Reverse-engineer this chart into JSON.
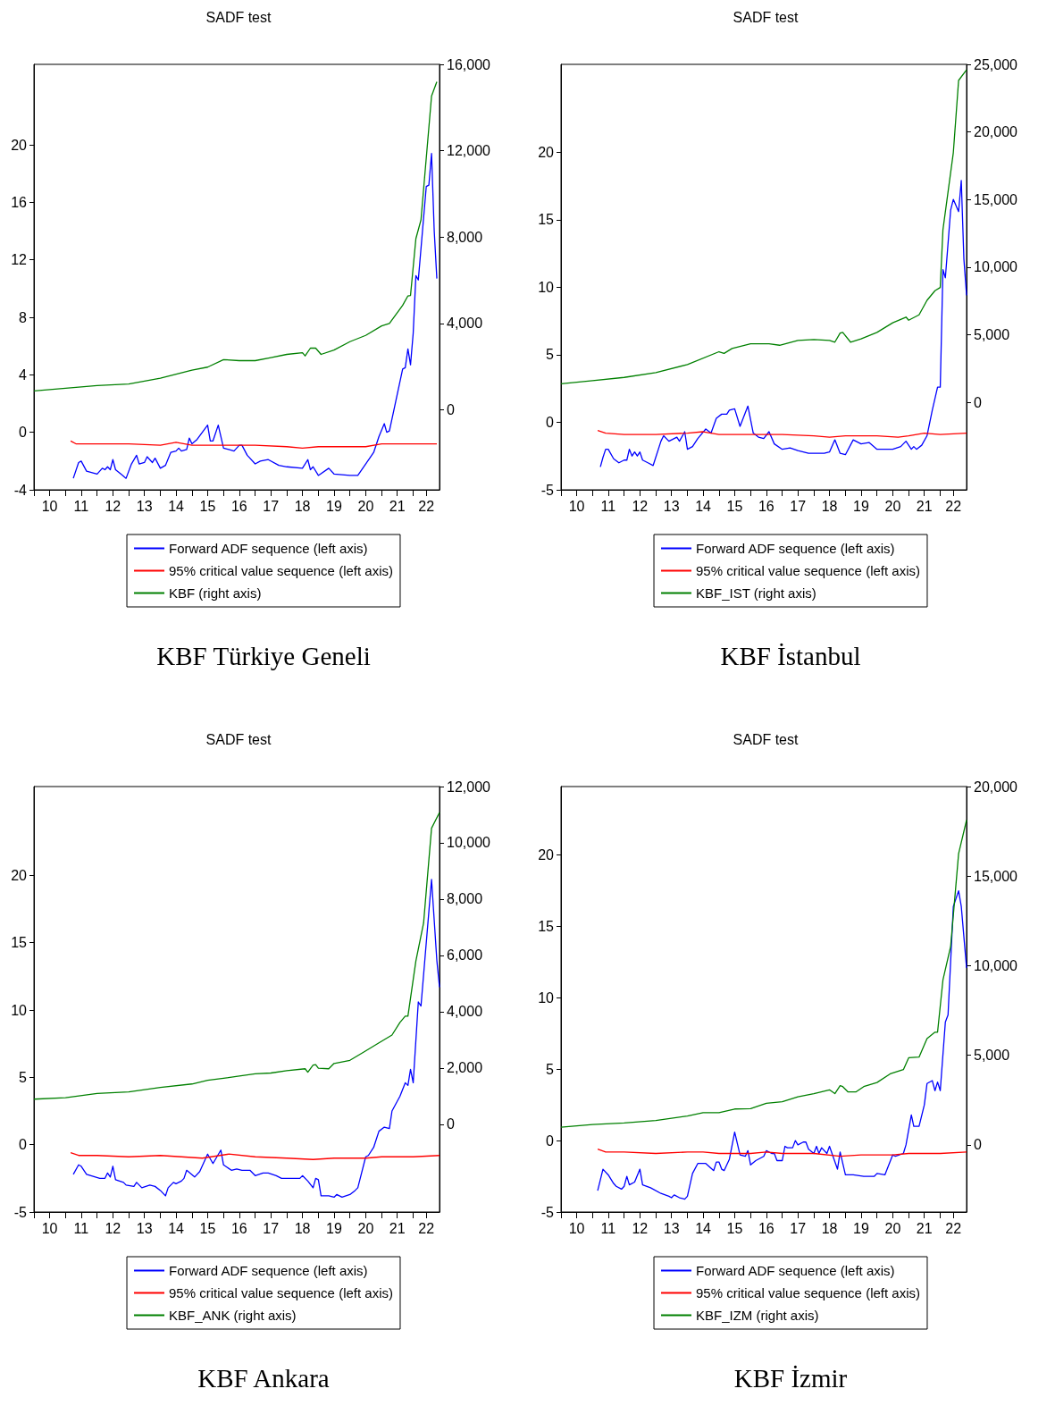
{
  "chart_data": [
    {
      "type": "line",
      "title": "SADF test",
      "annotations": [
        "KBF Türkiye Geneli"
      ],
      "legend": "bottom",
      "grid": false,
      "marker": "none",
      "line_style": "solid",
      "xlim": [
        "2010-01",
        "2022-11"
      ],
      "xticks": [
        {
          "value": "2010-01",
          "label": null
        },
        {
          "value": "2010-07",
          "label": "10"
        },
        {
          "value": "2011-01",
          "label": null
        },
        {
          "value": "2011-07",
          "label": "11"
        },
        {
          "value": "2012-01",
          "label": null
        },
        {
          "value": "2012-07",
          "label": "12"
        },
        {
          "value": "2013-01",
          "label": null
        },
        {
          "value": "2013-07",
          "label": "13"
        },
        {
          "value": "2014-01",
          "label": null
        },
        {
          "value": "2014-07",
          "label": "14"
        },
        {
          "value": "2015-01",
          "label": null
        },
        {
          "value": "2015-07",
          "label": "15"
        },
        {
          "value": "2016-01",
          "label": null
        },
        {
          "value": "2016-07",
          "label": "16"
        },
        {
          "value": "2017-01",
          "label": null
        },
        {
          "value": "2017-07",
          "label": "17"
        },
        {
          "value": "2018-01",
          "label": null
        },
        {
          "value": "2018-07",
          "label": "18"
        },
        {
          "value": "2019-01",
          "label": null
        },
        {
          "value": "2019-07",
          "label": "19"
        },
        {
          "value": "2020-01",
          "label": null
        },
        {
          "value": "2020-07",
          "label": "20"
        },
        {
          "value": "2021-01",
          "label": null
        },
        {
          "value": "2021-07",
          "label": "21"
        },
        {
          "value": "2022-01",
          "label": null
        },
        {
          "value": "2022-06",
          "label": "22"
        }
      ],
      "ylim": [
        -4,
        25.6
      ],
      "yticks": [
        -4,
        0,
        4,
        8,
        12,
        16,
        20
      ],
      "y2lim": [
        -3700,
        16000
      ],
      "y2ticks": [
        {
          "value": 0,
          "label": "0"
        },
        {
          "value": 4000,
          "label": "4,000"
        },
        {
          "value": 8000,
          "label": "8,000"
        },
        {
          "value": 12000,
          "label": "12,000"
        },
        {
          "value": 16000,
          "label": "16,000"
        }
      ],
      "series": [
        {
          "name": "Forward ADF sequence (left axis)",
          "color": "#0000ff",
          "x": [
            "2011-04",
            "2011-06",
            "2011-07",
            "2011-09",
            "2012-01",
            "2012-03",
            "2012-04",
            "2012-05",
            "2012-06",
            "2012-07",
            "2012-08",
            "2012-10",
            "2012-12",
            "2013-02",
            "2013-04",
            "2013-05",
            "2013-07",
            "2013-08",
            "2013-10",
            "2013-11",
            "2014-01",
            "2014-03",
            "2014-05",
            "2014-07",
            "2014-08",
            "2014-09",
            "2014-11",
            "2014-12",
            "2015-01",
            "2015-03",
            "2015-07",
            "2015-08",
            "2015-09",
            "2015-11",
            "2016-01",
            "2016-03",
            "2016-05",
            "2016-07",
            "2016-08",
            "2016-10",
            "2017-01",
            "2017-03",
            "2017-06",
            "2017-10",
            "2018-01",
            "2018-07",
            "2018-09",
            "2018-10",
            "2018-11",
            "2019-01",
            "2019-05",
            "2019-07",
            "2020-01",
            "2020-04",
            "2020-07",
            "2020-10",
            "2020-12",
            "2021-02",
            "2021-03",
            "2021-04",
            "2021-06",
            "2021-09",
            "2021-10",
            "2021-11",
            "2021-12",
            "2022-01",
            "2022-02",
            "2022-03",
            "2022-06",
            "2022-07",
            "2022-08",
            "2022-09",
            "2022-10"
          ],
          "values": [
            -3.2,
            -2.1,
            -2.0,
            -2.7,
            -2.9,
            -2.5,
            -2.6,
            -2.4,
            -2.6,
            -1.9,
            -2.6,
            -2.9,
            -3.2,
            -2.2,
            -1.6,
            -2.2,
            -2.1,
            -1.7,
            -2.1,
            -1.8,
            -2.5,
            -2.3,
            -1.4,
            -1.3,
            -1.1,
            -1.3,
            -1.2,
            -0.4,
            -0.8,
            -0.5,
            0.5,
            -0.6,
            -0.6,
            0.5,
            -1.1,
            -1.2,
            -1.3,
            -0.9,
            -0.9,
            -1.6,
            -2.2,
            -2.0,
            -1.9,
            -2.3,
            -2.4,
            -2.5,
            -1.9,
            -2.6,
            -2.4,
            -3.0,
            -2.5,
            -2.9,
            -3.0,
            -3.0,
            -2.2,
            -1.4,
            -0.3,
            0.6,
            0.0,
            0.1,
            1.8,
            4.4,
            4.5,
            5.8,
            4.7,
            6.9,
            10.9,
            10.6,
            17.1,
            17.2,
            19.4,
            14.0,
            10.7
          ]
        },
        {
          "name": "95% critical value sequence (left axis)",
          "color": "#ff0000",
          "x": [
            "2011-03",
            "2011-05",
            "2012-01",
            "2013-01",
            "2014-01",
            "2014-07",
            "2015-01",
            "2016-01",
            "2017-01",
            "2018-01",
            "2018-07",
            "2019-01",
            "2020-01",
            "2020-07",
            "2021-01",
            "2022-01",
            "2022-10"
          ],
          "values": [
            -0.6,
            -0.8,
            -0.8,
            -0.8,
            -0.9,
            -0.7,
            -0.9,
            -0.9,
            -0.9,
            -1.0,
            -1.1,
            -1.0,
            -1.0,
            -1.0,
            -0.8,
            -0.8,
            -0.8
          ]
        },
        {
          "name": "KBF (right axis)",
          "color": "#008000",
          "axis": "y2",
          "x": [
            "2010-01",
            "2011-01",
            "2012-01",
            "2013-01",
            "2014-01",
            "2015-01",
            "2015-07",
            "2016-01",
            "2016-07",
            "2017-01",
            "2017-07",
            "2018-01",
            "2018-07",
            "2018-08",
            "2018-10",
            "2018-12",
            "2019-02",
            "2019-07",
            "2020-01",
            "2020-07",
            "2021-01",
            "2021-04",
            "2021-09",
            "2021-11",
            "2021-12",
            "2022-02",
            "2022-04",
            "2022-08",
            "2022-10"
          ],
          "values": [
            880,
            1000,
            1130,
            1200,
            1470,
            1840,
            1980,
            2330,
            2280,
            2280,
            2420,
            2570,
            2650,
            2500,
            2860,
            2860,
            2570,
            2770,
            3160,
            3450,
            3890,
            4000,
            4840,
            5280,
            5300,
            7930,
            8800,
            14530,
            15190
          ]
        }
      ]
    },
    {
      "type": "line",
      "title": "SADF test",
      "annotations": [
        "KBF İstanbul"
      ],
      "legend": "bottom",
      "grid": false,
      "marker": "none",
      "line_style": "solid",
      "xlim": [
        "2010-01",
        "2022-11"
      ],
      "xticks": [
        {
          "value": "2010-01",
          "label": null
        },
        {
          "value": "2010-07",
          "label": "10"
        },
        {
          "value": "2011-01",
          "label": null
        },
        {
          "value": "2011-07",
          "label": "11"
        },
        {
          "value": "2012-01",
          "label": null
        },
        {
          "value": "2012-07",
          "label": "12"
        },
        {
          "value": "2013-01",
          "label": null
        },
        {
          "value": "2013-07",
          "label": "13"
        },
        {
          "value": "2014-01",
          "label": null
        },
        {
          "value": "2014-07",
          "label": "14"
        },
        {
          "value": "2015-01",
          "label": null
        },
        {
          "value": "2015-07",
          "label": "15"
        },
        {
          "value": "2016-01",
          "label": null
        },
        {
          "value": "2016-07",
          "label": "16"
        },
        {
          "value": "2017-01",
          "label": null
        },
        {
          "value": "2017-07",
          "label": "17"
        },
        {
          "value": "2018-01",
          "label": null
        },
        {
          "value": "2018-07",
          "label": "18"
        },
        {
          "value": "2019-01",
          "label": null
        },
        {
          "value": "2019-07",
          "label": "19"
        },
        {
          "value": "2020-01",
          "label": null
        },
        {
          "value": "2020-07",
          "label": "20"
        },
        {
          "value": "2021-01",
          "label": null
        },
        {
          "value": "2021-07",
          "label": "21"
        },
        {
          "value": "2022-01",
          "label": null
        },
        {
          "value": "2022-06",
          "label": "22"
        }
      ],
      "ylim": [
        -5,
        26.5
      ],
      "yticks": [
        -5,
        0,
        5,
        10,
        15,
        20
      ],
      "y2lim": [
        -6460,
        25000
      ],
      "y2ticks": [
        {
          "value": 0,
          "label": "0"
        },
        {
          "value": 5000,
          "label": "5,000"
        },
        {
          "value": 10000,
          "label": "10,000"
        },
        {
          "value": 15000,
          "label": "15,000"
        },
        {
          "value": 20000,
          "label": "20,000"
        },
        {
          "value": 25000,
          "label": "25,000"
        }
      ],
      "series": [
        {
          "name": "Forward ADF sequence (left axis)",
          "color": "#0000ff",
          "x": [
            "2011-04",
            "2011-05",
            "2011-06",
            "2011-07",
            "2011-09",
            "2011-11",
            "2012-01",
            "2012-02",
            "2012-03",
            "2012-04",
            "2012-05",
            "2012-06",
            "2012-07",
            "2012-08",
            "2012-10",
            "2012-12",
            "2013-03",
            "2013-04",
            "2013-06",
            "2013-09",
            "2013-10",
            "2013-12",
            "2014-01",
            "2014-03",
            "2014-05",
            "2014-08",
            "2014-10",
            "2014-12",
            "2015-02",
            "2015-04",
            "2015-05",
            "2015-07",
            "2015-09",
            "2015-12",
            "2016-02",
            "2016-04",
            "2016-06",
            "2016-08",
            "2016-10",
            "2017-01",
            "2017-04",
            "2017-07",
            "2017-11",
            "2018-05",
            "2018-07",
            "2018-09",
            "2018-11",
            "2019-01",
            "2019-04",
            "2019-07",
            "2019-10",
            "2020-01",
            "2020-07",
            "2020-10",
            "2020-12",
            "2021-02",
            "2021-03",
            "2021-04",
            "2021-06",
            "2021-08",
            "2021-10",
            "2021-12",
            "2022-01",
            "2022-02",
            "2022-03",
            "2022-05",
            "2022-06",
            "2022-08",
            "2022-09",
            "2022-10",
            "2022-11"
          ],
          "values": [
            -3.3,
            -2.6,
            -2.0,
            -2.0,
            -2.7,
            -3.0,
            -2.8,
            -2.8,
            -2.0,
            -2.5,
            -2.2,
            -2.5,
            -2.2,
            -2.8,
            -3.0,
            -3.2,
            -1.4,
            -1.0,
            -1.4,
            -1.1,
            -1.4,
            -0.7,
            -2.0,
            -1.8,
            -1.2,
            -0.5,
            -0.8,
            0.3,
            0.6,
            0.6,
            0.9,
            1.0,
            -0.3,
            1.2,
            -0.8,
            -1.1,
            -1.2,
            -0.7,
            -1.6,
            -2.0,
            -1.9,
            -2.1,
            -2.3,
            -2.3,
            -2.2,
            -1.3,
            -2.3,
            -2.4,
            -1.3,
            -1.6,
            -1.5,
            -2.0,
            -2.0,
            -1.8,
            -1.4,
            -2.0,
            -1.8,
            -2.0,
            -1.7,
            -1.0,
            0.9,
            2.6,
            2.6,
            11.3,
            10.7,
            15.7,
            16.5,
            15.6,
            17.9,
            12.1,
            9.4
          ]
        },
        {
          "name": "95% critical value sequence (left axis)",
          "color": "#ff0000",
          "x": [
            "2011-03",
            "2011-06",
            "2012-01",
            "2013-01",
            "2014-01",
            "2014-07",
            "2015-01",
            "2016-01",
            "2017-01",
            "2018-01",
            "2018-07",
            "2019-01",
            "2020-01",
            "2020-09",
            "2021-01",
            "2021-07",
            "2022-01",
            "2022-11"
          ],
          "values": [
            -0.6,
            -0.8,
            -0.9,
            -0.9,
            -0.8,
            -0.7,
            -0.9,
            -0.9,
            -0.9,
            -1.0,
            -1.1,
            -1.0,
            -1.0,
            -1.1,
            -1.0,
            -0.8,
            -0.9,
            -0.8
          ]
        },
        {
          "name": "KBF_IST (right axis)",
          "color": "#008000",
          "axis": "y2",
          "x": [
            "2010-01",
            "2011-01",
            "2012-01",
            "2013-01",
            "2014-01",
            "2015-01",
            "2015-03",
            "2015-06",
            "2016-01",
            "2016-08",
            "2016-12",
            "2017-07",
            "2018-01",
            "2018-07",
            "2018-09",
            "2018-11",
            "2018-12",
            "2019-03",
            "2019-07",
            "2020-01",
            "2020-07",
            "2020-12",
            "2021-01",
            "2021-05",
            "2021-08",
            "2021-11",
            "2022-01",
            "2022-02",
            "2022-06",
            "2022-08",
            "2022-11"
          ],
          "values": [
            1380,
            1610,
            1850,
            2210,
            2800,
            3750,
            3630,
            3990,
            4340,
            4340,
            4230,
            4580,
            4650,
            4580,
            4460,
            5130,
            5180,
            4460,
            4700,
            5180,
            5890,
            6310,
            6080,
            6480,
            7550,
            8260,
            8500,
            12770,
            18470,
            23810,
            24590
          ]
        }
      ]
    },
    {
      "type": "line",
      "title": "SADF test",
      "annotations": [
        "KBF Ankara"
      ],
      "legend": "bottom",
      "grid": false,
      "marker": "none",
      "line_style": "solid",
      "xlim": [
        "2010-01",
        "2022-11"
      ],
      "xticks": [
        {
          "value": "2010-01",
          "label": null
        },
        {
          "value": "2010-07",
          "label": "10"
        },
        {
          "value": "2011-01",
          "label": null
        },
        {
          "value": "2011-07",
          "label": "11"
        },
        {
          "value": "2012-01",
          "label": null
        },
        {
          "value": "2012-07",
          "label": "12"
        },
        {
          "value": "2013-01",
          "label": null
        },
        {
          "value": "2013-07",
          "label": "13"
        },
        {
          "value": "2014-01",
          "label": null
        },
        {
          "value": "2014-07",
          "label": "14"
        },
        {
          "value": "2015-01",
          "label": null
        },
        {
          "value": "2015-07",
          "label": "15"
        },
        {
          "value": "2016-01",
          "label": null
        },
        {
          "value": "2016-07",
          "label": "16"
        },
        {
          "value": "2017-01",
          "label": null
        },
        {
          "value": "2017-07",
          "label": "17"
        },
        {
          "value": "2018-01",
          "label": null
        },
        {
          "value": "2018-07",
          "label": "18"
        },
        {
          "value": "2019-01",
          "label": null
        },
        {
          "value": "2019-07",
          "label": "19"
        },
        {
          "value": "2020-01",
          "label": null
        },
        {
          "value": "2020-07",
          "label": "20"
        },
        {
          "value": "2021-01",
          "label": null
        },
        {
          "value": "2021-07",
          "label": "21"
        },
        {
          "value": "2022-01",
          "label": null
        },
        {
          "value": "2022-06",
          "label": "22"
        }
      ],
      "ylim": [
        -5,
        26.6
      ],
      "yticks": [
        -5,
        0,
        5,
        10,
        15,
        20
      ],
      "y2lim": [
        -3120,
        12000
      ],
      "y2ticks": [
        {
          "value": 0,
          "label": "0"
        },
        {
          "value": 2000,
          "label": "2,000"
        },
        {
          "value": 4000,
          "label": "4,000"
        },
        {
          "value": 6000,
          "label": "6,000"
        },
        {
          "value": 8000,
          "label": "8,000"
        },
        {
          "value": 10000,
          "label": "10,000"
        },
        {
          "value": 12000,
          "label": "12,000"
        }
      ],
      "series": [
        {
          "name": "Forward ADF sequence (left axis)",
          "color": "#0000ff",
          "x": [
            "2011-04",
            "2011-06",
            "2011-07",
            "2011-09",
            "2012-02",
            "2012-04",
            "2012-05",
            "2012-06",
            "2012-07",
            "2012-08",
            "2012-11",
            "2012-12",
            "2013-03",
            "2013-04",
            "2013-06",
            "2013-09",
            "2013-11",
            "2014-01",
            "2014-03",
            "2014-04",
            "2014-06",
            "2014-07",
            "2014-09",
            "2014-10",
            "2014-11",
            "2015-02",
            "2015-04",
            "2015-07",
            "2015-09",
            "2015-12",
            "2016-01",
            "2016-04",
            "2016-06",
            "2016-08",
            "2016-11",
            "2017-01",
            "2017-04",
            "2017-06",
            "2017-09",
            "2017-11",
            "2018-03",
            "2018-06",
            "2018-07",
            "2018-09",
            "2018-11",
            "2018-12",
            "2019-01",
            "2019-02",
            "2019-05",
            "2019-07",
            "2019-08",
            "2019-10",
            "2020-01",
            "2020-03",
            "2020-04",
            "2020-07",
            "2020-08",
            "2020-10",
            "2020-12",
            "2021-02",
            "2021-04",
            "2021-05",
            "2021-08",
            "2021-10",
            "2021-11",
            "2021-12",
            "2022-01",
            "2022-03",
            "2022-04",
            "2022-08",
            "2022-10",
            "2022-11"
          ],
          "values": [
            -2.2,
            -1.5,
            -1.6,
            -2.2,
            -2.5,
            -2.5,
            -2.1,
            -2.4,
            -1.6,
            -2.6,
            -2.8,
            -3.0,
            -3.1,
            -2.8,
            -3.2,
            -3.0,
            -3.1,
            -3.4,
            -3.8,
            -3.2,
            -2.8,
            -2.9,
            -2.7,
            -2.5,
            -1.9,
            -2.4,
            -2.0,
            -0.7,
            -1.4,
            -0.4,
            -1.5,
            -1.9,
            -1.8,
            -1.9,
            -1.9,
            -2.3,
            -2.1,
            -2.1,
            -2.3,
            -2.5,
            -2.5,
            -2.5,
            -2.3,
            -2.7,
            -3.2,
            -2.5,
            -2.6,
            -3.8,
            -3.8,
            -3.9,
            -3.7,
            -3.9,
            -3.7,
            -3.4,
            -3.2,
            -0.9,
            -0.8,
            -0.2,
            1.0,
            1.3,
            1.2,
            2.5,
            3.6,
            4.6,
            4.4,
            5.6,
            4.6,
            10.6,
            10.3,
            19.7,
            13.7,
            11.7
          ]
        },
        {
          "name": "95% critical value sequence (left axis)",
          "color": "#ff0000",
          "x": [
            "2011-03",
            "2011-06",
            "2012-01",
            "2013-01",
            "2014-01",
            "2014-09",
            "2015-05",
            "2016-03",
            "2017-01",
            "2018-01",
            "2018-11",
            "2019-07",
            "2020-07",
            "2021-01",
            "2022-01",
            "2022-11"
          ],
          "values": [
            -0.6,
            -0.8,
            -0.8,
            -0.9,
            -0.8,
            -0.9,
            -1.0,
            -0.7,
            -0.9,
            -1.0,
            -1.1,
            -1.0,
            -1.0,
            -0.9,
            -0.9,
            -0.8
          ]
        },
        {
          "name": "KBF_ANK (right axis)",
          "color": "#008000",
          "axis": "y2",
          "x": [
            "2010-01",
            "2011-01",
            "2012-01",
            "2013-01",
            "2014-01",
            "2015-01",
            "2015-07",
            "2016-01",
            "2016-07",
            "2017-01",
            "2017-07",
            "2018-01",
            "2018-08",
            "2018-09",
            "2018-11",
            "2018-12",
            "2019-01",
            "2019-05",
            "2019-07",
            "2020-01",
            "2020-06",
            "2020-12",
            "2021-05",
            "2021-08",
            "2021-10",
            "2021-11",
            "2022-02",
            "2022-05",
            "2022-08",
            "2022-11"
          ],
          "values": [
            890,
            940,
            1090,
            1150,
            1310,
            1430,
            1560,
            1630,
            1710,
            1790,
            1820,
            1900,
            1970,
            1850,
            2100,
            2120,
            1990,
            1970,
            2160,
            2270,
            2550,
            2890,
            3170,
            3620,
            3840,
            3840,
            5800,
            7150,
            10520,
            11080
          ]
        }
      ]
    },
    {
      "type": "line",
      "title": "SADF test",
      "annotations": [
        "KBF İzmir"
      ],
      "legend": "bottom",
      "grid": false,
      "marker": "none",
      "line_style": "solid",
      "xlim": [
        "2010-01",
        "2022-11"
      ],
      "xticks": [
        {
          "value": "2010-01",
          "label": null
        },
        {
          "value": "2010-07",
          "label": "10"
        },
        {
          "value": "2011-01",
          "label": null
        },
        {
          "value": "2011-07",
          "label": "11"
        },
        {
          "value": "2012-01",
          "label": null
        },
        {
          "value": "2012-07",
          "label": "12"
        },
        {
          "value": "2013-01",
          "label": null
        },
        {
          "value": "2013-07",
          "label": "13"
        },
        {
          "value": "2014-01",
          "label": null
        },
        {
          "value": "2014-07",
          "label": "14"
        },
        {
          "value": "2015-01",
          "label": null
        },
        {
          "value": "2015-07",
          "label": "15"
        },
        {
          "value": "2016-01",
          "label": null
        },
        {
          "value": "2016-07",
          "label": "16"
        },
        {
          "value": "2017-01",
          "label": null
        },
        {
          "value": "2017-07",
          "label": "17"
        },
        {
          "value": "2018-01",
          "label": null
        },
        {
          "value": "2018-07",
          "label": "18"
        },
        {
          "value": "2019-01",
          "label": null
        },
        {
          "value": "2019-07",
          "label": "19"
        },
        {
          "value": "2020-01",
          "label": null
        },
        {
          "value": "2020-07",
          "label": "20"
        },
        {
          "value": "2021-01",
          "label": null
        },
        {
          "value": "2021-07",
          "label": "21"
        },
        {
          "value": "2022-01",
          "label": null
        },
        {
          "value": "2022-06",
          "label": "22"
        }
      ],
      "ylim": [
        -5,
        24.8
      ],
      "yticks": [
        -5,
        0,
        5,
        10,
        15,
        20
      ],
      "y2lim": [
        -3750,
        20000
      ],
      "y2ticks": [
        {
          "value": 0,
          "label": "0"
        },
        {
          "value": 5000,
          "label": "5,000"
        },
        {
          "value": 10000,
          "label": "10,000"
        },
        {
          "value": 15000,
          "label": "15,000"
        },
        {
          "value": 20000,
          "label": "20,000"
        }
      ],
      "series": [
        {
          "name": "Forward ADF sequence (left axis)",
          "color": "#0000ff",
          "x": [
            "2011-03",
            "2011-05",
            "2011-07",
            "2011-09",
            "2011-10",
            "2011-12",
            "2012-01",
            "2012-02",
            "2012-03",
            "2012-05",
            "2012-07",
            "2012-08",
            "2012-11",
            "2013-03",
            "2013-06",
            "2013-07",
            "2013-08",
            "2013-10",
            "2013-12",
            "2014-01",
            "2014-03",
            "2014-05",
            "2014-08",
            "2014-11",
            "2014-12",
            "2015-01",
            "2015-02",
            "2015-03",
            "2015-04",
            "2015-05",
            "2015-07",
            "2015-09",
            "2015-11",
            "2015-12",
            "2016-01",
            "2016-03",
            "2016-06",
            "2016-07",
            "2016-09",
            "2016-10",
            "2016-11",
            "2017-01",
            "2017-02",
            "2017-03",
            "2017-05",
            "2017-06",
            "2017-07",
            "2017-09",
            "2017-10",
            "2017-11",
            "2018-01",
            "2018-02",
            "2018-03",
            "2018-04",
            "2018-06",
            "2018-07",
            "2018-10",
            "2018-11",
            "2019-01",
            "2019-04",
            "2019-08",
            "2019-12",
            "2020-01",
            "2020-04",
            "2020-07",
            "2020-08",
            "2020-11",
            "2020-12",
            "2021-02",
            "2021-03",
            "2021-05",
            "2021-07",
            "2021-08",
            "2021-10",
            "2021-11",
            "2021-12",
            "2022-01",
            "2022-03",
            "2022-04",
            "2022-06",
            "2022-08",
            "2022-09",
            "2022-11"
          ],
          "values": [
            -3.5,
            -2.0,
            -2.4,
            -3.0,
            -3.2,
            -3.4,
            -3.2,
            -2.5,
            -3.1,
            -2.9,
            -2.0,
            -3.1,
            -3.3,
            -3.7,
            -3.9,
            -4.0,
            -3.8,
            -4.0,
            -4.1,
            -3.9,
            -2.3,
            -1.6,
            -1.6,
            -2.1,
            -1.5,
            -1.5,
            -2.0,
            -2.1,
            -1.7,
            -1.3,
            0.6,
            -1.0,
            -1.1,
            -0.7,
            -1.7,
            -1.4,
            -1.1,
            -0.7,
            -0.9,
            -0.9,
            -1.4,
            -1.4,
            -0.4,
            -0.5,
            -0.5,
            0.0,
            -0.3,
            -0.1,
            -0.1,
            -0.6,
            -0.9,
            -0.4,
            -0.9,
            -0.5,
            -0.9,
            -0.4,
            -2.0,
            -0.8,
            -2.4,
            -2.4,
            -2.5,
            -2.5,
            -2.3,
            -2.4,
            -1.0,
            -1.1,
            -0.9,
            -0.3,
            1.8,
            1.0,
            1.0,
            2.5,
            4.0,
            4.2,
            3.5,
            4.1,
            3.5,
            8.3,
            8.8,
            16.4,
            17.5,
            16.4,
            12.1
          ]
        },
        {
          "name": "95% critical value sequence (left axis)",
          "color": "#ff0000",
          "x": [
            "2011-03",
            "2011-06",
            "2012-01",
            "2013-01",
            "2014-01",
            "2014-07",
            "2015-01",
            "2016-01",
            "2016-07",
            "2017-01",
            "2018-01",
            "2018-11",
            "2019-07",
            "2020-07",
            "2021-01",
            "2022-01",
            "2022-11"
          ],
          "values": [
            -0.6,
            -0.8,
            -0.8,
            -0.9,
            -0.8,
            -0.8,
            -0.9,
            -0.9,
            -0.8,
            -0.9,
            -0.9,
            -1.1,
            -1.0,
            -1.0,
            -0.9,
            -0.9,
            -0.8
          ]
        },
        {
          "name": "KBF_IZM (right axis)",
          "color": "#008000",
          "axis": "y2",
          "x": [
            "2010-01",
            "2011-01",
            "2012-01",
            "2013-01",
            "2014-01",
            "2014-07",
            "2015-01",
            "2015-07",
            "2016-01",
            "2016-07",
            "2017-01",
            "2017-07",
            "2018-01",
            "2018-07",
            "2018-09",
            "2018-11",
            "2018-12",
            "2019-02",
            "2019-05",
            "2019-08",
            "2020-01",
            "2020-06",
            "2020-11",
            "2021-01",
            "2021-05",
            "2021-08",
            "2021-11",
            "2021-12",
            "2022-02",
            "2022-05",
            "2022-08",
            "2022-11"
          ],
          "values": [
            980,
            1130,
            1220,
            1360,
            1610,
            1790,
            1790,
            2000,
            2020,
            2320,
            2410,
            2680,
            2860,
            3070,
            2860,
            3300,
            3250,
            2950,
            2950,
            3250,
            3480,
            3960,
            4200,
            4860,
            4900,
            5930,
            6290,
            6290,
            9200,
            11070,
            16250,
            18130
          ]
        }
      ]
    }
  ]
}
